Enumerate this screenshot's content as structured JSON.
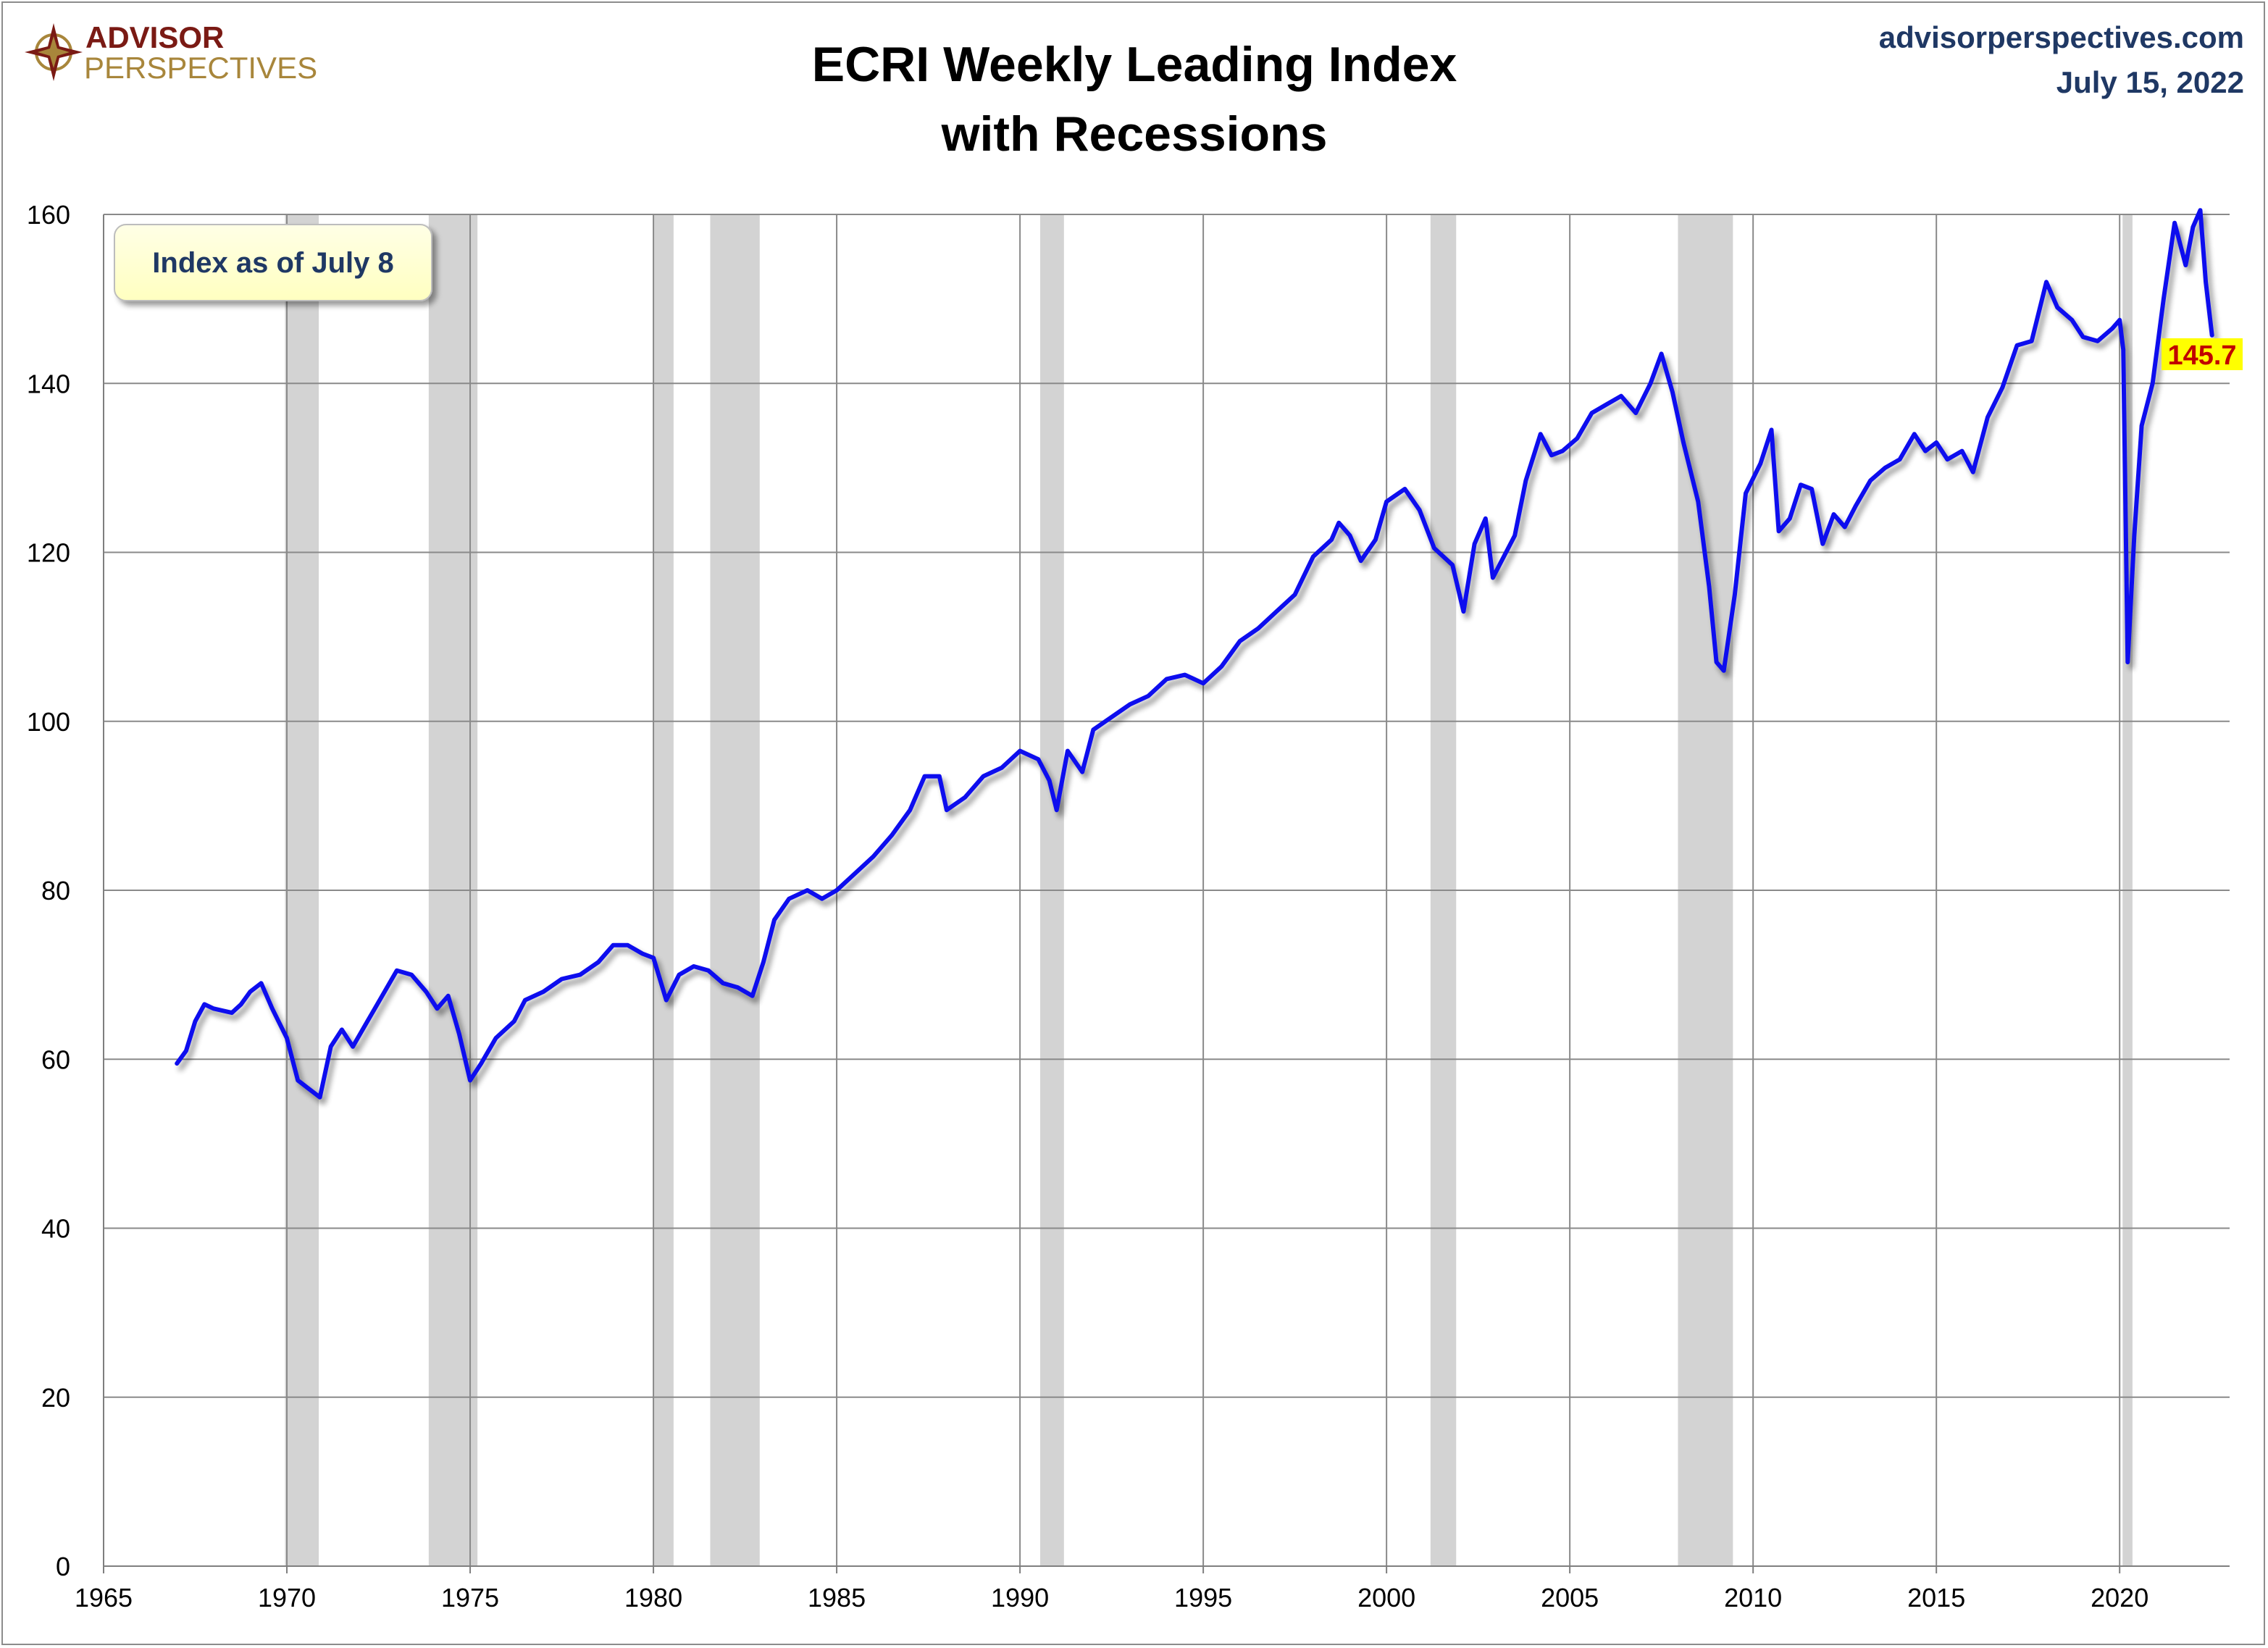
{
  "header": {
    "logo_line1": "ADVISOR",
    "logo_line2": "PERSPECTIVES",
    "site": "advisorperspectives.com",
    "date": "July 15, 2022"
  },
  "colors": {
    "line": "#1010ee",
    "recession": "#d3d3d3",
    "grid": "#8a8a8a",
    "callout_bg": "#ffffcc",
    "logo_red": "#7a1a14",
    "logo_gold": "#a8863b",
    "blue_text": "#1f3864",
    "latest_bg": "#ffff00",
    "latest_text": "#c00000"
  },
  "callout": {
    "text": "Index as of July 8"
  },
  "chart_data": {
    "type": "line",
    "title": "ECRI Weekly Leading Index",
    "subtitle": "with Recessions",
    "xlabel": "",
    "ylabel": "",
    "xlim": [
      1965,
      2023
    ],
    "ylim": [
      0,
      160
    ],
    "y_ticks": [
      0,
      20,
      40,
      60,
      80,
      100,
      120,
      140,
      160
    ],
    "x_ticks": [
      1965,
      1970,
      1975,
      1980,
      1985,
      1990,
      1995,
      2000,
      2005,
      2010,
      2015,
      2020
    ],
    "grid": true,
    "legend": "none",
    "recessions": [
      [
        1969.95,
        1970.87
      ],
      [
        1973.87,
        1975.2
      ],
      [
        1980.0,
        1980.55
      ],
      [
        1981.55,
        1982.9
      ],
      [
        1990.55,
        1991.2
      ],
      [
        2001.2,
        2001.9
      ],
      [
        2007.95,
        2009.45
      ],
      [
        2020.08,
        2020.35
      ]
    ],
    "series": [
      {
        "points": [
          [
            1967.0,
            59.5
          ],
          [
            1967.25,
            61.0
          ],
          [
            1967.5,
            64.5
          ],
          [
            1967.75,
            66.5
          ],
          [
            1968.0,
            66.0
          ],
          [
            1968.5,
            65.5
          ],
          [
            1968.75,
            66.5
          ],
          [
            1969.0,
            68.0
          ],
          [
            1969.3,
            69.0
          ],
          [
            1969.6,
            66.0
          ],
          [
            1970.0,
            62.5
          ],
          [
            1970.3,
            57.5
          ],
          [
            1970.6,
            56.5
          ],
          [
            1970.9,
            55.5
          ],
          [
            1971.2,
            61.5
          ],
          [
            1971.5,
            63.5
          ],
          [
            1971.8,
            61.5
          ],
          [
            1972.2,
            64.5
          ],
          [
            1972.6,
            67.5
          ],
          [
            1973.0,
            70.5
          ],
          [
            1973.4,
            70.0
          ],
          [
            1973.8,
            68.0
          ],
          [
            1974.1,
            66.0
          ],
          [
            1974.4,
            67.5
          ],
          [
            1974.7,
            63.0
          ],
          [
            1975.0,
            57.5
          ],
          [
            1975.3,
            59.5
          ],
          [
            1975.7,
            62.5
          ],
          [
            1976.2,
            64.5
          ],
          [
            1976.5,
            67.0
          ],
          [
            1977.0,
            68.0
          ],
          [
            1977.5,
            69.5
          ],
          [
            1978.0,
            70.0
          ],
          [
            1978.5,
            71.5
          ],
          [
            1978.9,
            73.5
          ],
          [
            1979.3,
            73.5
          ],
          [
            1979.7,
            72.5
          ],
          [
            1980.0,
            72.0
          ],
          [
            1980.35,
            67.0
          ],
          [
            1980.7,
            70.0
          ],
          [
            1981.1,
            71.0
          ],
          [
            1981.5,
            70.5
          ],
          [
            1981.9,
            69.0
          ],
          [
            1982.3,
            68.5
          ],
          [
            1982.7,
            67.5
          ],
          [
            1983.0,
            71.5
          ],
          [
            1983.3,
            76.5
          ],
          [
            1983.7,
            79.0
          ],
          [
            1984.2,
            80.0
          ],
          [
            1984.6,
            79.0
          ],
          [
            1985.0,
            80.0
          ],
          [
            1985.5,
            82.0
          ],
          [
            1986.0,
            84.0
          ],
          [
            1986.5,
            86.5
          ],
          [
            1987.0,
            89.5
          ],
          [
            1987.4,
            93.5
          ],
          [
            1987.8,
            93.5
          ],
          [
            1988.0,
            89.5
          ],
          [
            1988.5,
            91.0
          ],
          [
            1989.0,
            93.5
          ],
          [
            1989.5,
            94.5
          ],
          [
            1990.0,
            96.5
          ],
          [
            1990.5,
            95.5
          ],
          [
            1990.8,
            93.0
          ],
          [
            1991.0,
            89.5
          ],
          [
            1991.3,
            96.5
          ],
          [
            1991.7,
            94.0
          ],
          [
            1992.0,
            99.0
          ],
          [
            1992.5,
            100.5
          ],
          [
            1993.0,
            102.0
          ],
          [
            1993.5,
            103.0
          ],
          [
            1994.0,
            105.0
          ],
          [
            1994.5,
            105.5
          ],
          [
            1995.0,
            104.5
          ],
          [
            1995.5,
            106.5
          ],
          [
            1996.0,
            109.5
          ],
          [
            1996.5,
            111.0
          ],
          [
            1997.0,
            113.0
          ],
          [
            1997.5,
            115.0
          ],
          [
            1998.0,
            119.5
          ],
          [
            1998.5,
            121.5
          ],
          [
            1998.7,
            123.5
          ],
          [
            1999.0,
            122.0
          ],
          [
            1999.3,
            119.0
          ],
          [
            1999.7,
            121.5
          ],
          [
            2000.0,
            126.0
          ],
          [
            2000.5,
            127.5
          ],
          [
            2000.9,
            125.0
          ],
          [
            2001.3,
            120.5
          ],
          [
            2001.8,
            118.5
          ],
          [
            2002.1,
            113.0
          ],
          [
            2002.4,
            121.0
          ],
          [
            2002.7,
            124.0
          ],
          [
            2002.9,
            117.0
          ],
          [
            2003.2,
            119.5
          ],
          [
            2003.5,
            122.0
          ],
          [
            2003.8,
            128.5
          ],
          [
            2004.2,
            134.0
          ],
          [
            2004.5,
            131.5
          ],
          [
            2004.8,
            132.0
          ],
          [
            2005.2,
            133.5
          ],
          [
            2005.6,
            136.5
          ],
          [
            2006.0,
            137.5
          ],
          [
            2006.4,
            138.5
          ],
          [
            2006.8,
            136.5
          ],
          [
            2007.2,
            140.0
          ],
          [
            2007.5,
            143.5
          ],
          [
            2007.8,
            139.0
          ],
          [
            2008.1,
            133.0
          ],
          [
            2008.5,
            126.0
          ],
          [
            2008.8,
            116.0
          ],
          [
            2009.0,
            107.0
          ],
          [
            2009.2,
            106.0
          ],
          [
            2009.5,
            115.0
          ],
          [
            2009.8,
            127.0
          ],
          [
            2010.2,
            130.5
          ],
          [
            2010.5,
            134.5
          ],
          [
            2010.7,
            122.5
          ],
          [
            2011.0,
            124.0
          ],
          [
            2011.3,
            128.0
          ],
          [
            2011.6,
            127.5
          ],
          [
            2011.9,
            121.0
          ],
          [
            2012.2,
            124.5
          ],
          [
            2012.5,
            123.0
          ],
          [
            2012.8,
            125.5
          ],
          [
            2013.2,
            128.5
          ],
          [
            2013.6,
            130.0
          ],
          [
            2014.0,
            131.0
          ],
          [
            2014.4,
            134.0
          ],
          [
            2014.7,
            132.0
          ],
          [
            2015.0,
            133.0
          ],
          [
            2015.3,
            131.0
          ],
          [
            2015.7,
            132.0
          ],
          [
            2016.0,
            129.5
          ],
          [
            2016.4,
            136.0
          ],
          [
            2016.8,
            139.5
          ],
          [
            2017.2,
            144.5
          ],
          [
            2017.6,
            145.0
          ],
          [
            2018.0,
            152.0
          ],
          [
            2018.3,
            149.0
          ],
          [
            2018.7,
            147.5
          ],
          [
            2019.0,
            145.5
          ],
          [
            2019.4,
            145.0
          ],
          [
            2019.8,
            146.5
          ],
          [
            2020.0,
            147.5
          ],
          [
            2020.1,
            144.0
          ],
          [
            2020.22,
            107.0
          ],
          [
            2020.4,
            122.0
          ],
          [
            2020.6,
            135.0
          ],
          [
            2020.9,
            140.0
          ],
          [
            2021.2,
            150.0
          ],
          [
            2021.5,
            159.0
          ],
          [
            2021.8,
            154.0
          ],
          [
            2022.0,
            158.5
          ],
          [
            2022.2,
            160.5
          ],
          [
            2022.35,
            152.0
          ],
          [
            2022.52,
            145.7
          ]
        ]
      }
    ],
    "annotations": [
      {
        "text": "145.7",
        "x": 2022.52,
        "y": 145.7
      }
    ]
  }
}
